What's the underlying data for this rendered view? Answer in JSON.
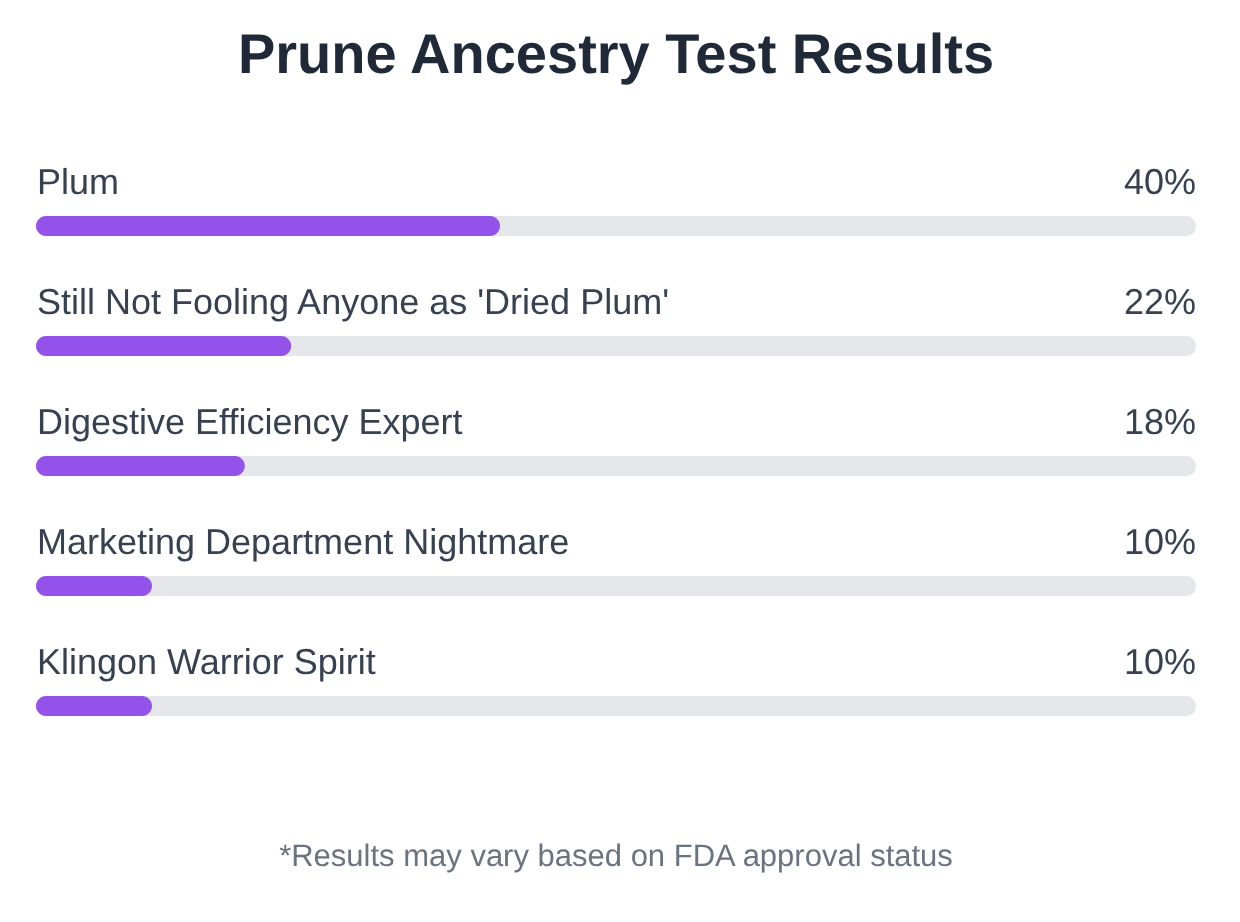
{
  "chart_data": {
    "type": "bar",
    "orientation": "horizontal",
    "title": "Prune Ancestry Test Results",
    "categories": [
      "Plum",
      "Still Not Fooling Anyone as 'Dried Plum'",
      "Digestive Efficiency Expert",
      "Marketing Department Nightmare",
      "Klingon Warrior Spirit"
    ],
    "values": [
      40,
      22,
      18,
      10,
      10
    ],
    "color": "#9352e9",
    "value_labels": [
      "40%",
      "22%",
      "18%",
      "10%",
      "10%"
    ],
    "xlim": [
      0,
      100
    ],
    "tick_labels": "y",
    "annotations": [
      "*Results may vary based on FDA approval status"
    ]
  }
}
